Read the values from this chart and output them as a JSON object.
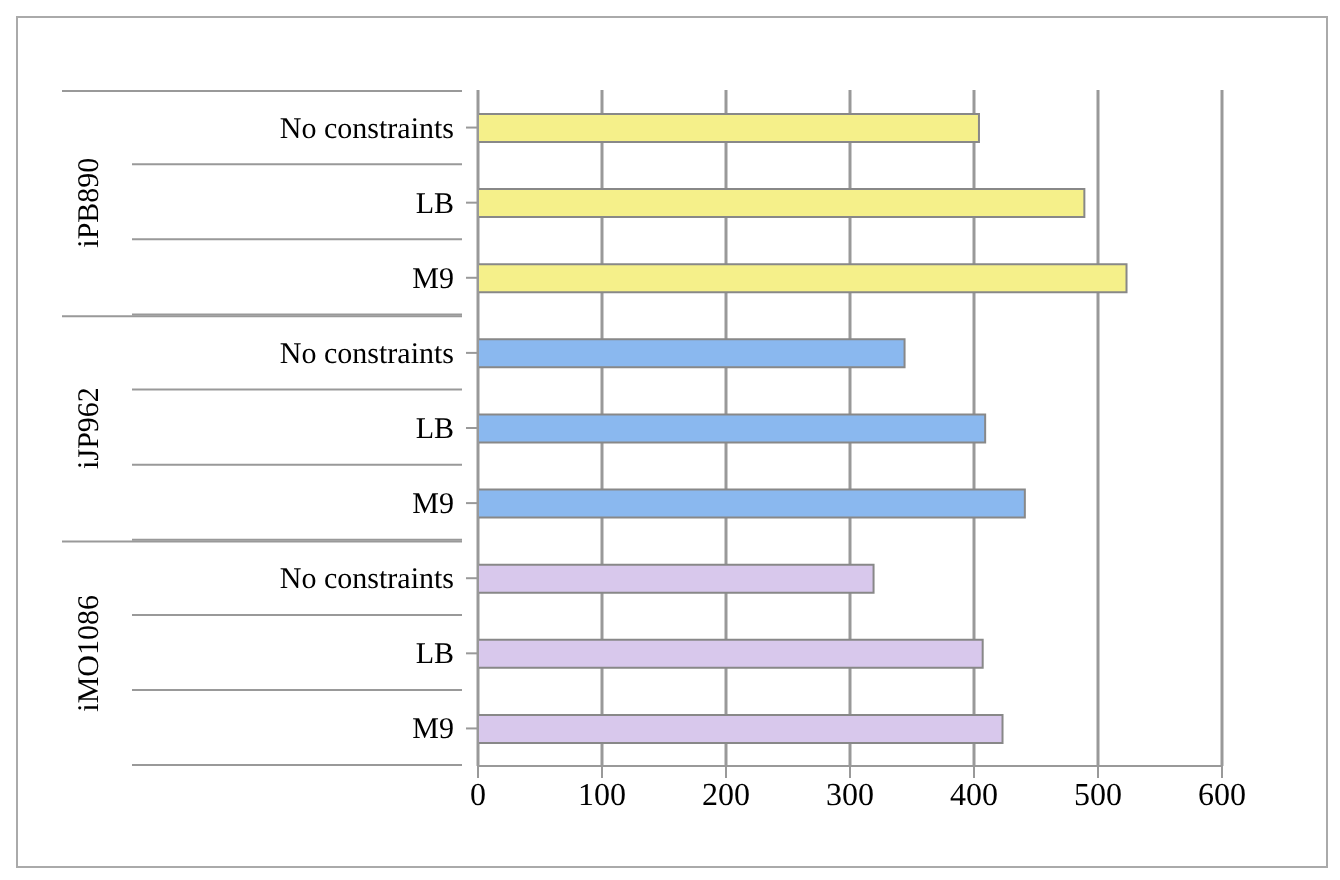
{
  "chart_data": {
    "type": "bar",
    "orientation": "horizontal",
    "categories": [
      "No constraints",
      "LB",
      "M9",
      "No constraints",
      "LB",
      "M9",
      "No constraints",
      "LB",
      "M9"
    ],
    "values": [
      404,
      489,
      523,
      344,
      409,
      441,
      319,
      407,
      423
    ],
    "colors": [
      "#f5f08a",
      "#f5f08a",
      "#f5f08a",
      "#8ab8ef",
      "#8ab8ef",
      "#8ab8ef",
      "#d8c8ec",
      "#d8c8ec",
      "#d8c8ec"
    ],
    "annotations": [
      "iPB890",
      "iJP962",
      "iMO1086"
    ],
    "xlim": [
      0,
      600
    ],
    "xticks": [
      0,
      100,
      200,
      300,
      400,
      500,
      600
    ],
    "grid": "x"
  }
}
